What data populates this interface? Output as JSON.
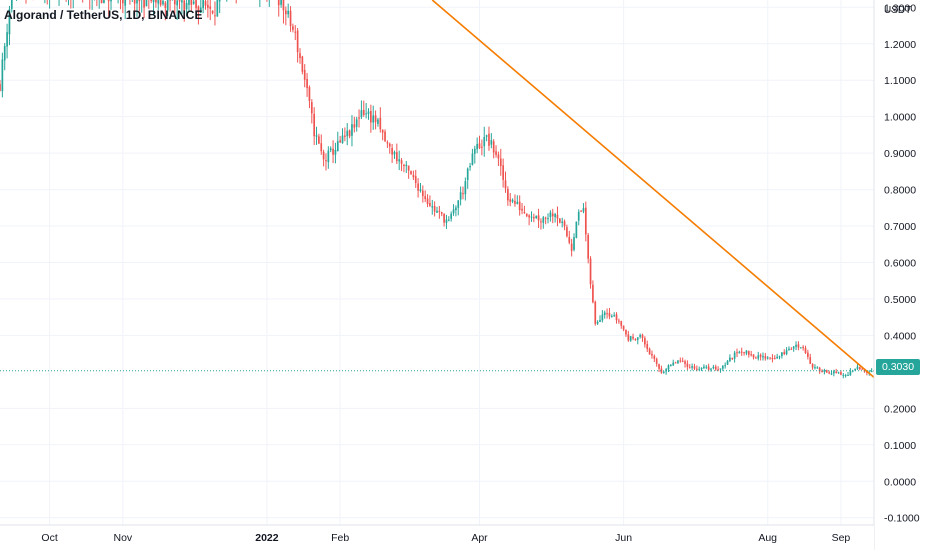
{
  "header": {
    "symbol": "Algorand / TetherUS, 1D, BINANCE",
    "currency": "USDT"
  },
  "last_price": {
    "value": 0.303,
    "label": "0.3030"
  },
  "colors": {
    "up": "#26a69a",
    "down": "#ef5350",
    "trendline": "#f57c00",
    "grid": "#f0f3fa",
    "axis_text": "#131722",
    "axis_line": "#e0e3eb"
  },
  "chart_data": {
    "type": "candlestick",
    "title": "Algorand / TetherUS, 1D, BINANCE",
    "ylabel": "USDT",
    "ylim": [
      -0.12,
      1.32
    ],
    "grid": true,
    "y_ticks": [
      {
        "value": 1.3,
        "label": "1.3000"
      },
      {
        "value": 1.2,
        "label": "1.2000"
      },
      {
        "value": 1.1,
        "label": "1.1000"
      },
      {
        "value": 1.0,
        "label": "1.0000"
      },
      {
        "value": 0.9,
        "label": "0.9000"
      },
      {
        "value": 0.8,
        "label": "0.8000"
      },
      {
        "value": 0.7,
        "label": "0.7000"
      },
      {
        "value": 0.6,
        "label": "0.6000"
      },
      {
        "value": 0.5,
        "label": "0.5000"
      },
      {
        "value": 0.4,
        "label": "0.4000"
      },
      {
        "value": 0.2,
        "label": "0.2000"
      },
      {
        "value": 0.1,
        "label": "0.1000"
      },
      {
        "value": 0.0,
        "label": "0.0000"
      },
      {
        "value": -0.1,
        "label": "-0.1000"
      }
    ],
    "x_ticks": [
      {
        "date": "2021-10-01",
        "label": "Oct",
        "bold": false
      },
      {
        "date": "2021-11-01",
        "label": "Nov",
        "bold": false
      },
      {
        "date": "2022-01-01",
        "label": "2022",
        "bold": true
      },
      {
        "date": "2022-02-01",
        "label": "Feb",
        "bold": false
      },
      {
        "date": "2022-04-01",
        "label": "Apr",
        "bold": false
      },
      {
        "date": "2022-06-01",
        "label": "Jun",
        "bold": false
      },
      {
        "date": "2022-08-01",
        "label": "Aug",
        "bold": false
      },
      {
        "date": "2022-09-01",
        "label": "Sep",
        "bold": false
      }
    ],
    "xlim": [
      "2021-09-10",
      "2022-09-15"
    ],
    "trendline": {
      "start": {
        "date": "2022-03-12",
        "price": 1.32
      },
      "end": {
        "date": "2022-09-15",
        "price": 0.285
      }
    },
    "last_price": 0.303,
    "price_path": [
      {
        "date": "2021-09-10",
        "price": 1.09
      },
      {
        "date": "2021-09-14",
        "price": 1.3
      },
      {
        "date": "2021-09-17",
        "price": 1.36
      },
      {
        "date": "2021-12-10",
        "price": 1.3
      },
      {
        "date": "2021-12-16",
        "price": 1.36
      },
      {
        "date": "2022-01-05",
        "price": 1.34
      },
      {
        "date": "2022-01-10",
        "price": 1.27
      },
      {
        "date": "2022-01-13",
        "price": 1.22
      },
      {
        "date": "2022-01-17",
        "price": 1.1
      },
      {
        "date": "2022-01-21",
        "price": 0.96
      },
      {
        "date": "2022-01-25",
        "price": 0.88
      },
      {
        "date": "2022-01-31",
        "price": 0.92
      },
      {
        "date": "2022-02-07",
        "price": 0.97
      },
      {
        "date": "2022-02-10",
        "price": 1.02
      },
      {
        "date": "2022-02-16",
        "price": 0.99
      },
      {
        "date": "2022-02-21",
        "price": 0.92
      },
      {
        "date": "2022-02-26",
        "price": 0.88
      },
      {
        "date": "2022-03-06",
        "price": 0.81
      },
      {
        "date": "2022-03-12",
        "price": 0.75
      },
      {
        "date": "2022-03-19",
        "price": 0.71
      },
      {
        "date": "2022-03-25",
        "price": 0.8
      },
      {
        "date": "2022-03-30",
        "price": 0.91
      },
      {
        "date": "2022-04-04",
        "price": 0.94
      },
      {
        "date": "2022-04-08",
        "price": 0.9
      },
      {
        "date": "2022-04-13",
        "price": 0.78
      },
      {
        "date": "2022-04-20",
        "price": 0.74
      },
      {
        "date": "2022-04-27",
        "price": 0.72
      },
      {
        "date": "2022-05-03",
        "price": 0.74
      },
      {
        "date": "2022-05-07",
        "price": 0.69
      },
      {
        "date": "2022-05-10",
        "price": 0.64
      },
      {
        "date": "2022-05-12",
        "price": 0.72
      },
      {
        "date": "2022-05-15",
        "price": 0.75
      },
      {
        "date": "2022-05-17",
        "price": 0.6
      },
      {
        "date": "2022-05-20",
        "price": 0.43
      },
      {
        "date": "2022-05-24",
        "price": 0.47
      },
      {
        "date": "2022-05-30",
        "price": 0.44
      },
      {
        "date": "2022-06-03",
        "price": 0.39
      },
      {
        "date": "2022-06-08",
        "price": 0.4
      },
      {
        "date": "2022-06-13",
        "price": 0.34
      },
      {
        "date": "2022-06-17",
        "price": 0.3
      },
      {
        "date": "2022-06-24",
        "price": 0.33
      },
      {
        "date": "2022-07-01",
        "price": 0.31
      },
      {
        "date": "2022-07-12",
        "price": 0.31
      },
      {
        "date": "2022-07-20",
        "price": 0.36
      },
      {
        "date": "2022-07-28",
        "price": 0.34
      },
      {
        "date": "2022-08-05",
        "price": 0.34
      },
      {
        "date": "2022-08-12",
        "price": 0.37
      },
      {
        "date": "2022-08-16",
        "price": 0.37
      },
      {
        "date": "2022-08-20",
        "price": 0.31
      },
      {
        "date": "2022-08-27",
        "price": 0.3
      },
      {
        "date": "2022-09-03",
        "price": 0.29
      },
      {
        "date": "2022-09-08",
        "price": 0.31
      },
      {
        "date": "2022-09-12",
        "price": 0.303
      }
    ]
  }
}
